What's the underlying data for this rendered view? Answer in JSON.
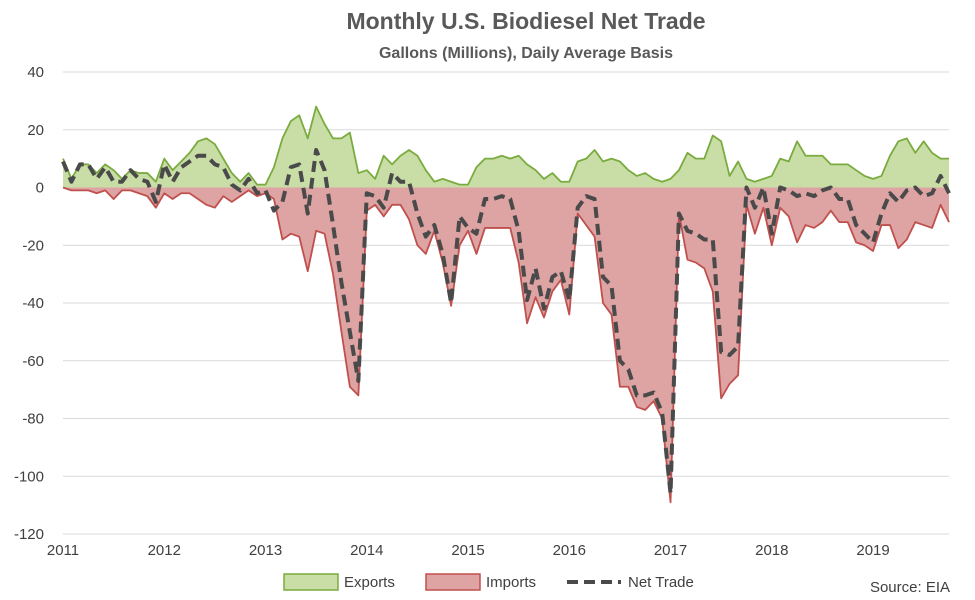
{
  "chart_data": {
    "type": "area",
    "title": "Monthly U.S. Biodiesel Net Trade",
    "subtitle": "Gallons (Millions), Daily Average Basis",
    "source": "Source: EIA",
    "ylim": [
      -120,
      40
    ],
    "yticks": [
      40,
      20,
      0,
      -20,
      -40,
      -60,
      -80,
      -100,
      -120
    ],
    "xlim": [
      2011,
      2019.75
    ],
    "xticks": [
      2011,
      2012,
      2013,
      2014,
      2015,
      2016,
      2017,
      2018,
      2019
    ],
    "xtick_labels": [
      "2011",
      "2012",
      "2013",
      "2014",
      "2015",
      "2016",
      "2017",
      "2018",
      "2019"
    ],
    "grid": true,
    "legend": "bottom",
    "colors": {
      "exports_fill": "#c9dea6",
      "exports_line": "#7aab3f",
      "imports_fill": "#dea3a3",
      "imports_line": "#c0504d",
      "net_line": "#4a4a4a"
    },
    "x": [
      2011.0,
      2011.083,
      2011.167,
      2011.25,
      2011.333,
      2011.417,
      2011.5,
      2011.583,
      2011.667,
      2011.75,
      2011.833,
      2011.917,
      2012.0,
      2012.083,
      2012.167,
      2012.25,
      2012.333,
      2012.417,
      2012.5,
      2012.583,
      2012.667,
      2012.75,
      2012.833,
      2012.917,
      2013.0,
      2013.083,
      2013.167,
      2013.25,
      2013.333,
      2013.417,
      2013.5,
      2013.583,
      2013.667,
      2013.75,
      2013.833,
      2013.917,
      2014.0,
      2014.083,
      2014.167,
      2014.25,
      2014.333,
      2014.417,
      2014.5,
      2014.583,
      2014.667,
      2014.75,
      2014.833,
      2014.917,
      2015.0,
      2015.083,
      2015.167,
      2015.25,
      2015.333,
      2015.417,
      2015.5,
      2015.583,
      2015.667,
      2015.75,
      2015.833,
      2015.917,
      2016.0,
      2016.083,
      2016.167,
      2016.25,
      2016.333,
      2016.417,
      2016.5,
      2016.583,
      2016.667,
      2016.75,
      2016.833,
      2016.917,
      2017.0,
      2017.083,
      2017.167,
      2017.25,
      2017.333,
      2017.417,
      2017.5,
      2017.583,
      2017.667,
      2017.75,
      2017.833,
      2017.917,
      2018.0,
      2018.083,
      2018.167,
      2018.25,
      2018.333,
      2018.417,
      2018.5,
      2018.583,
      2018.667,
      2018.75,
      2018.833,
      2018.917,
      2019.0,
      2019.083,
      2019.167,
      2019.25,
      2019.333,
      2019.417,
      2019.5,
      2019.583,
      2019.667,
      2019.75
    ],
    "series": [
      {
        "name": "Exports",
        "values": [
          10,
          3,
          8,
          8,
          5,
          8,
          6,
          3,
          6,
          5,
          5,
          2,
          10,
          6,
          9,
          12,
          16,
          17,
          15,
          10,
          5,
          2,
          5,
          1,
          1,
          7,
          17,
          23,
          25,
          17,
          28,
          22,
          17,
          17,
          19,
          5,
          6,
          3,
          11,
          8,
          11,
          13,
          11,
          6,
          2,
          3,
          2,
          1,
          1,
          7,
          10,
          10,
          11,
          10,
          11,
          8,
          6,
          3,
          5,
          2,
          2,
          9,
          10,
          13,
          9,
          10,
          9,
          6,
          4,
          5,
          3,
          2,
          3,
          6,
          12,
          10,
          10,
          18,
          16,
          4,
          9,
          3,
          2,
          3,
          4,
          10,
          9,
          16,
          11,
          11,
          11,
          8,
          8,
          8,
          6,
          4,
          3,
          4,
          11,
          16,
          17,
          12,
          16,
          12,
          10,
          10
        ]
      },
      {
        "name": "Imports",
        "values": [
          0,
          -1,
          -1,
          -1,
          -2,
          -1,
          -4,
          -1,
          -1,
          -2,
          -3,
          -7,
          -2,
          -4,
          -2,
          -2,
          -4,
          -6,
          -7,
          -3,
          -5,
          -3,
          -1,
          -3,
          -2,
          -4,
          -18,
          -16,
          -17,
          -29,
          -15,
          -16,
          -30,
          -50,
          -69,
          -72,
          -8,
          -6,
          -10,
          -6,
          -6,
          -11,
          -20,
          -23,
          -15,
          -26,
          -41,
          -20,
          -15,
          -23,
          -14,
          -14,
          -14,
          -14,
          -26,
          -47,
          -38,
          -45,
          -36,
          -32,
          -44,
          -9,
          -13,
          -17,
          -40,
          -44,
          -69,
          -69,
          -76,
          -77,
          -74,
          -80,
          -109,
          -9,
          -25,
          -26,
          -28,
          -36,
          -73,
          -68,
          -65,
          -6,
          -16,
          -7,
          -20,
          -7,
          -10,
          -19,
          -13,
          -14,
          -12,
          -8,
          -12,
          -12,
          -19,
          -20,
          -22,
          -13,
          -13,
          -21,
          -18,
          -12,
          -13,
          -14,
          -6,
          -12
        ]
      },
      {
        "name": "Net Trade",
        "values": [
          9,
          2,
          8,
          8,
          3,
          7,
          2,
          2,
          6,
          3,
          2,
          -5,
          8,
          2,
          7,
          9,
          11,
          11,
          8,
          7,
          1,
          -1,
          3,
          -2,
          -1,
          -8,
          -5,
          7,
          8,
          -9,
          13,
          6,
          -13,
          -33,
          -50,
          -67,
          -2,
          -3,
          -7,
          5,
          2,
          2,
          -9,
          -17,
          -13,
          -23,
          -40,
          -10,
          -14,
          -16,
          -4,
          -4,
          -3,
          -4,
          -15,
          -39,
          -28,
          -42,
          -31,
          -29,
          -39,
          -7,
          -3,
          -4,
          -31,
          -34,
          -60,
          -63,
          -72,
          -72,
          -71,
          -78,
          -106,
          -9,
          -15,
          -16,
          -18,
          -18,
          -57,
          -58,
          -55,
          0,
          -7,
          0,
          -16,
          0,
          -1,
          -3,
          -2,
          -3,
          -1,
          0,
          -4,
          -4,
          -13,
          -16,
          -19,
          -9,
          -2,
          -5,
          -1,
          0,
          -3,
          -2,
          4,
          -2
        ]
      }
    ]
  }
}
